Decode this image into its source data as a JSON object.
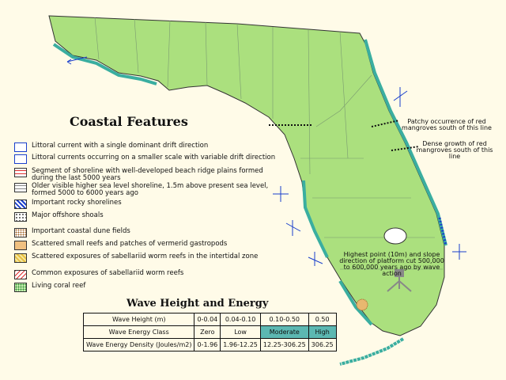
{
  "title": "Coastal Features",
  "legend": [
    "Littoral current with a single dominant drift direction",
    "Littoral currents occurring on a smaller scale with variable drift direction",
    "Segment of shoreline with well-developed beach ridge plains formed during the last 5000 years",
    "Older visible higher sea level shoreline, 1.5m above present sea level, formed 5000 to 6000 years ago",
    "Important rocky shorelines",
    "Major offshore shoals",
    "Important coastal dune fields",
    "Scattered small reefs and patches of vermerid gastropods",
    "Scattered exposures of sabellariid worm reefs in the intertidal zone",
    "Common exposures of sabellariid worm reefs",
    "Living coral reef"
  ],
  "annotations": [
    "Patchy occurrence of red mangroves south of this line",
    "Dense growth of red mangroves south of this line",
    "Highest point (10m) and slope direction of platform cut 500,000 to 600,000 years ago by wave action"
  ],
  "table": {
    "title": "Wave Height and Energy",
    "rows": [
      [
        "Wave Height (m)",
        "0-0.04",
        "0.04-0.10",
        "0.10-0.50",
        "0.50"
      ],
      [
        "Wave Energy Class",
        "Zero",
        "Low",
        "Moderate",
        "High"
      ],
      [
        "Wave Energy Density (Joules/m2)",
        "0-1.96",
        "1.96-12.25",
        "12.25-306.25",
        "306.25"
      ]
    ]
  }
}
